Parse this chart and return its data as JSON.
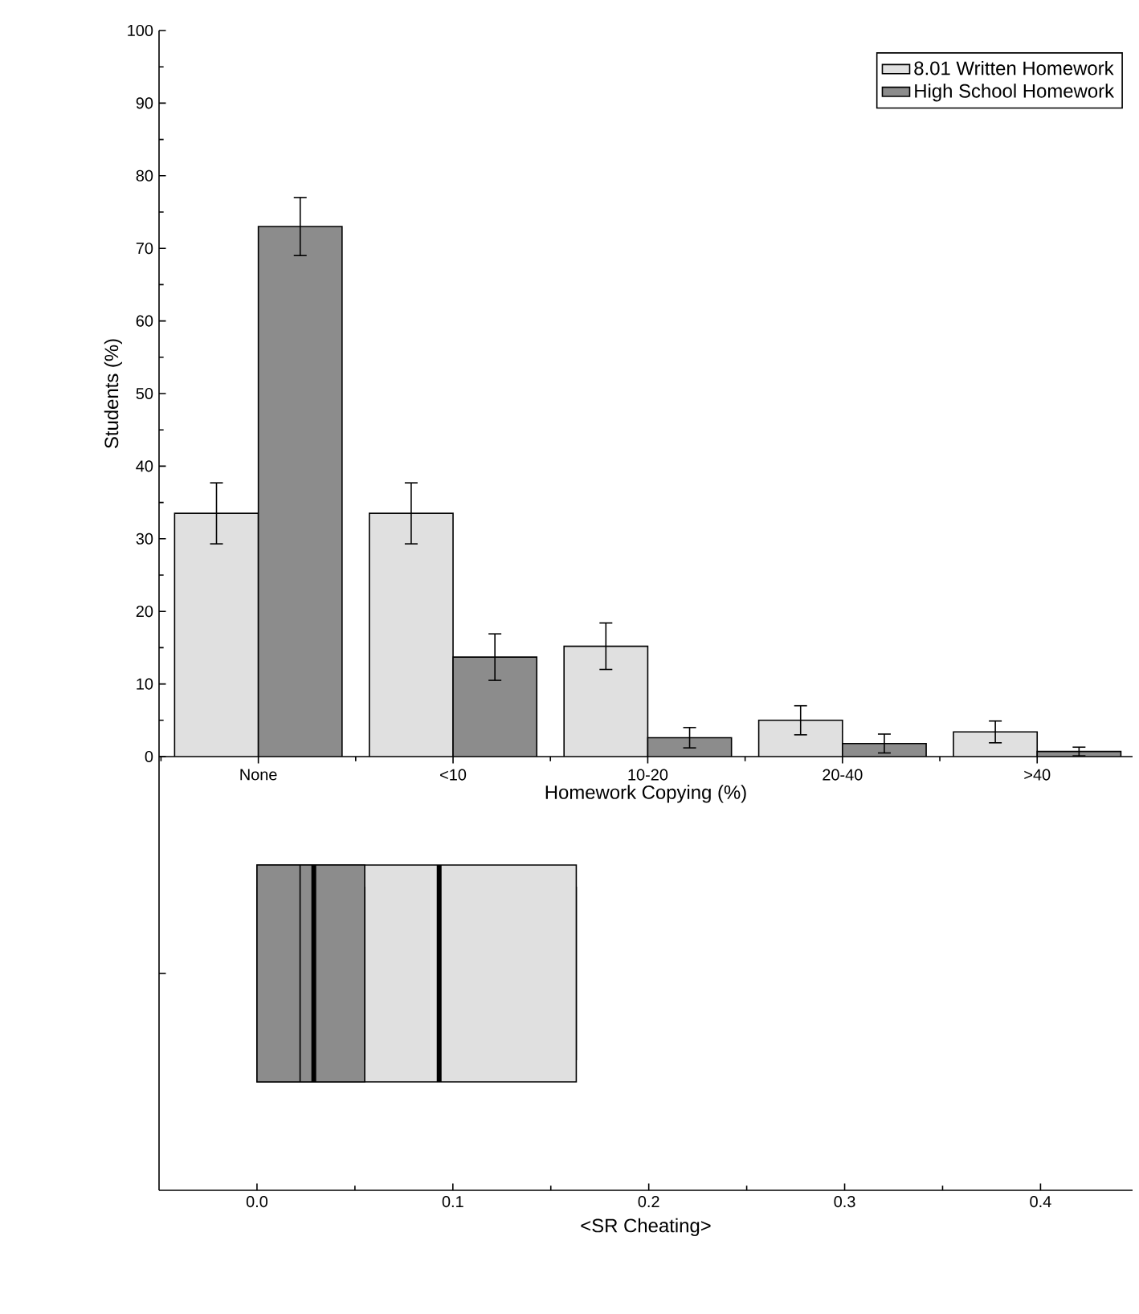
{
  "chart_data": [
    {
      "type": "bar",
      "ylabel": "Students (%)",
      "xlabel": "Homework Copying (%)",
      "categories": [
        "None",
        "<10",
        "10-20",
        "20-40",
        ">40"
      ],
      "ylim": [
        0,
        100
      ],
      "yticks": [
        0,
        10,
        20,
        30,
        40,
        50,
        60,
        70,
        80,
        90,
        100
      ],
      "legend": "top right",
      "series": [
        {
          "name": "8.01 Written Homework",
          "color": "#e0e0e0",
          "values": [
            33.5,
            33.5,
            15.2,
            5.0,
            3.4
          ],
          "errors": [
            4.2,
            4.2,
            3.2,
            2.0,
            1.5
          ]
        },
        {
          "name": "High School Homework",
          "color": "#8c8c8c",
          "values": [
            73,
            13.7,
            2.6,
            1.8,
            0.7
          ],
          "errors": [
            4.0,
            3.2,
            1.4,
            1.3,
            0.6
          ]
        }
      ]
    },
    {
      "type": "box",
      "orientation": "horizontal",
      "xlabel": "<SR Cheating>",
      "categories": [
        null
      ],
      "xlim": [
        -0.05,
        0.447
      ],
      "xticks": [
        {
          "value": 0,
          "label": "0.0"
        },
        0.1,
        0.2,
        0.3,
        0.4
      ],
      "tick_labels": "x",
      "series": [
        {
          "color": "#e0e0e0",
          "boxes": [
            {
              "low": 0,
              "q1": 0,
              "median": 0.093,
              "q3": 0.163,
              "high": 0.163
            }
          ]
        },
        {
          "color": "#8c8c8c",
          "boxes": [
            {
              "low": 0,
              "q1": 0,
              "median": 0.029,
              "q3": 0.055,
              "high": 0.055,
              "mean": 0.022
            }
          ]
        }
      ]
    }
  ]
}
